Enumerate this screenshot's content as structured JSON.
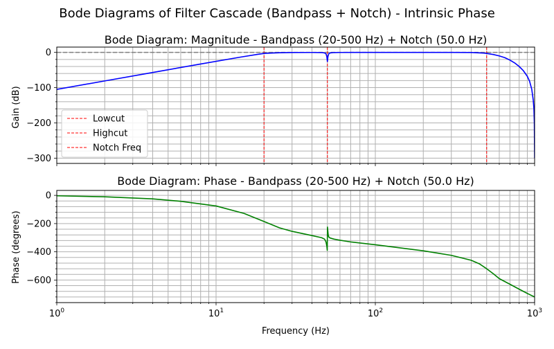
{
  "chart_data": {
    "suptitle": "Bode Diagrams of Filter Cascade (Bandpass + Notch) - Intrinsic Phase",
    "xlabel": "Frequency (Hz)",
    "x_ticks": [
      {
        "value": 1,
        "base": "10",
        "exp": "0"
      },
      {
        "value": 10,
        "base": "10",
        "exp": "1"
      },
      {
        "value": 100,
        "base": "10",
        "exp": "2"
      },
      {
        "value": 1000,
        "base": "10",
        "exp": "3"
      }
    ],
    "grid": true,
    "panels": [
      {
        "type": "line",
        "title": "Bode Diagram: Magnitude - Bandpass (20-500 Hz) + Notch (50.0 Hz)",
        "ylabel": "Gain (dB)",
        "xscale": "log",
        "xlim": [
          1,
          1000
        ],
        "ylim": [
          -315,
          15
        ],
        "yticks": [
          0,
          -100,
          -200,
          -300
        ],
        "yticklabels": [
          "0",
          "−100",
          "−200",
          "−300"
        ],
        "hline": {
          "y": 0,
          "color": "#808080",
          "style": "dashed"
        },
        "vlines": [
          {
            "x": 20,
            "color": "#ff0000",
            "label": "Lowcut"
          },
          {
            "x": 500,
            "color": "#ff0000",
            "label": "Highcut"
          },
          {
            "x": 50,
            "color": "#ff0000",
            "label": "Notch Freq"
          }
        ],
        "legend": {
          "position": "lower-left",
          "entries": [
            "Lowcut",
            "Highcut",
            "Notch Freq"
          ]
        },
        "series": [
          {
            "color": "#0000ff",
            "x": [
              1,
              2,
              4,
              8,
              14,
              18,
              20,
              22,
              25,
              30,
              40,
              46,
              48,
              49,
              49.6,
              50,
              50.4,
              51,
              52,
              55,
              60,
              80,
              100,
              200,
              300,
              400,
              480,
              500,
              550,
              600,
              650,
              700,
              750,
              800,
              850,
              900,
              930,
              960,
              980,
              990,
              996,
              1000
            ],
            "y": [
              -105,
              -81,
              -57,
              -33,
              -14,
              -6,
              -3,
              -2,
              -1,
              -0.4,
              -0.2,
              -0.5,
              -1.5,
              -4,
              -12,
              -26,
              -12,
              -4,
              -1.5,
              -0.5,
              -0.2,
              0,
              0,
              0,
              0,
              -0.3,
              -2,
              -3,
              -6,
              -10,
              -15,
              -22,
              -30,
              -40,
              -52,
              -68,
              -82,
              -105,
              -135,
              -160,
              -200,
              -300
            ]
          }
        ]
      },
      {
        "type": "line",
        "title": "Bode Diagram: Phase - Bandpass (20-500 Hz) + Notch (50.0 Hz)",
        "ylabel": "Phase (degrees)",
        "xscale": "log",
        "xlim": [
          1,
          1000
        ],
        "ylim": [
          -760,
          35
        ],
        "yticks": [
          0,
          -200,
          -400,
          -600
        ],
        "yticklabels": [
          "0",
          "−200",
          "−400",
          "−600"
        ],
        "series": [
          {
            "color": "#008000",
            "x": [
              1,
              2,
              4,
              6,
              10,
              15,
              20,
              25,
              30,
              40,
              46,
              48,
              49,
              49.6,
              49.9,
              50.05,
              50.3,
              50.6,
              51,
              52,
              55,
              60,
              70,
              100,
              150,
              200,
              300,
              400,
              450,
              500,
              550,
              600,
              700,
              800,
              900,
              1000
            ],
            "y": [
              -3,
              -10,
              -25,
              -42,
              -75,
              -128,
              -185,
              -230,
              -255,
              -285,
              -300,
              -310,
              -330,
              -360,
              -390,
              -225,
              -250,
              -280,
              -295,
              -302,
              -310,
              -318,
              -330,
              -350,
              -375,
              -393,
              -425,
              -460,
              -485,
              -520,
              -555,
              -590,
              -630,
              -665,
              -695,
              -720
            ]
          }
        ]
      }
    ]
  }
}
